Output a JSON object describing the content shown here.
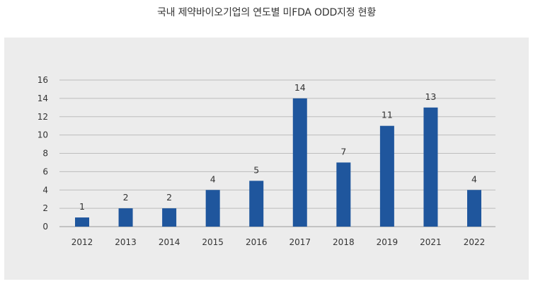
{
  "title": "국내 제약바이오기업의 연도별 미FDA ODD지정 현황",
  "colors": {
    "bar": "#1f569d",
    "grid": "#bdbdbd",
    "panel": "#ececec"
  },
  "chart_data": {
    "type": "bar",
    "title": "국내 제약바이오기업의 연도별 미FDA ODD지정 현황",
    "xlabel": "",
    "ylabel": "",
    "categories": [
      "2012",
      "2013",
      "2014",
      "2015",
      "2016",
      "2017",
      "2018",
      "2019",
      "2021",
      "2022"
    ],
    "values": [
      1,
      2,
      2,
      4,
      5,
      14,
      7,
      11,
      13,
      4
    ],
    "ylim": [
      0,
      16
    ],
    "yticks": [
      "0",
      "2",
      "4",
      "6",
      "8",
      "10",
      "12",
      "14",
      "16"
    ],
    "grid": true,
    "legend": "none"
  }
}
